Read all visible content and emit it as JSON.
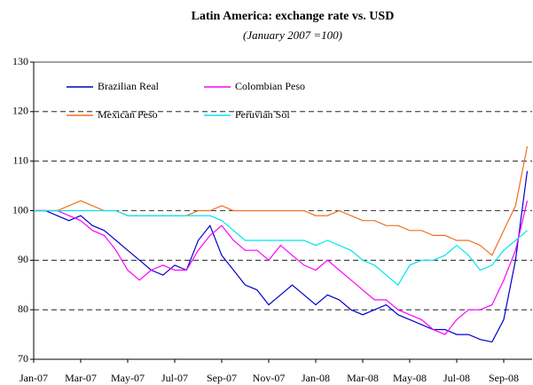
{
  "chart_data": {
    "type": "line",
    "title": "Latin America: exchange rate vs. USD",
    "subtitle": "(January 2007 =100)",
    "categories": [
      "Jan-07",
      null,
      null,
      null,
      "Mar-07",
      null,
      null,
      null,
      "May-07",
      null,
      null,
      null,
      "Jul-07",
      null,
      null,
      null,
      "Sep-07",
      null,
      null,
      null,
      "Nov-07",
      null,
      null,
      null,
      "Jan-08",
      null,
      null,
      null,
      "Mar-08",
      null,
      null,
      null,
      "May-08",
      null,
      null,
      null,
      "Jul-08",
      null,
      null,
      null,
      "Sep-08",
      null,
      null
    ],
    "series": [
      {
        "name": "Brazilian Real",
        "color": "#0000cc",
        "values": [
          100,
          100,
          99,
          98,
          99,
          97,
          96,
          94,
          92,
          90,
          88,
          87,
          89,
          88,
          94,
          97,
          91,
          88,
          85,
          84,
          81,
          83,
          85,
          83,
          81,
          83,
          82,
          80,
          79,
          80,
          81,
          79,
          78,
          77,
          76,
          76,
          75,
          75,
          74,
          73.5,
          78,
          90,
          108
        ]
      },
      {
        "name": "Colombian Peso",
        "color": "#ff00ff",
        "values": [
          100,
          100,
          100,
          99,
          98,
          96,
          95,
          92,
          88,
          86,
          88,
          89,
          88,
          88,
          92,
          95,
          97,
          94,
          92,
          92,
          90,
          93,
          91,
          89,
          88,
          90,
          88,
          86,
          84,
          82,
          82,
          80,
          79,
          78,
          76,
          75,
          78,
          80,
          80,
          81,
          86,
          92,
          102
        ]
      },
      {
        "name": "Mexican Peso",
        "color": "#f07020",
        "values": [
          100,
          100,
          100,
          101,
          102,
          101,
          100,
          100,
          99,
          99,
          99,
          99,
          99,
          99,
          100,
          100,
          101,
          100,
          100,
          100,
          100,
          100,
          100,
          100,
          99,
          99,
          100,
          99,
          98,
          98,
          97,
          97,
          96,
          96,
          95,
          95,
          94,
          94,
          93,
          91,
          96,
          101,
          113
        ]
      },
      {
        "name": "Peruvian Sol",
        "color": "#00e5ee",
        "values": [
          100,
          100,
          100,
          100,
          100,
          100,
          100,
          100,
          99,
          99,
          99,
          99,
          99,
          99,
          99,
          99,
          98,
          96,
          94,
          94,
          94,
          94,
          94,
          94,
          93,
          94,
          93,
          92,
          90,
          89,
          87,
          85,
          89,
          90,
          90,
          91,
          93,
          91,
          88,
          89,
          92,
          94,
          96
        ]
      }
    ],
    "ylim": [
      70,
      130
    ],
    "yticks": [
      70,
      80,
      90,
      100,
      110,
      120,
      130
    ],
    "grid": true
  }
}
